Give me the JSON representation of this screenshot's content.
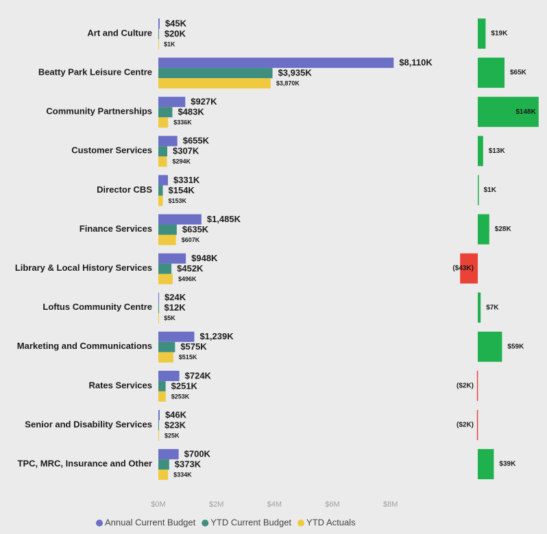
{
  "chart_data": [
    {
      "type": "hbar",
      "categories": [
        "Art and Culture",
        "Beatty Park Leisure Centre",
        "Community Partnerships",
        "Customer Services",
        "Director CBS",
        "Finance Services",
        "Library & Local History Services",
        "Loftus Community Centre",
        "Marketing and Communications",
        "Rates Services",
        "Senior and Disability Services",
        "TPC, MRC, Insurance and Other"
      ],
      "series": [
        {
          "name": "Annual Current Budget",
          "color": "#6b6fc6",
          "values": [
            0.045,
            8.11,
            0.927,
            0.655,
            0.331,
            1.485,
            0.948,
            0.024,
            1.239,
            0.724,
            0.046,
            0.7
          ],
          "value_labels": [
            "$45K",
            "$8,110K",
            "$927K",
            "$655K",
            "$331K",
            "$1,485K",
            "$948K",
            "$24K",
            "$1,239K",
            "$724K",
            "$46K",
            "$700K"
          ]
        },
        {
          "name": "YTD Current Budget",
          "color": "#3f8f80",
          "values": [
            0.02,
            3.935,
            0.483,
            0.307,
            0.154,
            0.635,
            0.452,
            0.012,
            0.575,
            0.251,
            0.023,
            0.373
          ],
          "value_labels": [
            "$20K",
            "$3,935K",
            "$483K",
            "$307K",
            "$154K",
            "$635K",
            "$452K",
            "$12K",
            "$575K",
            "$251K",
            "$23K",
            "$373K"
          ]
        },
        {
          "name": "YTD Actuals",
          "color": "#efc940",
          "values": [
            0.001,
            3.87,
            0.336,
            0.294,
            0.153,
            0.607,
            0.496,
            0.005,
            0.515,
            0.253,
            0.025,
            0.334
          ],
          "value_labels": [
            "$1K",
            "$3,870K",
            "$336K",
            "$294K",
            "$153K",
            "$607K",
            "$496K",
            "$5K",
            "$515K",
            "$253K",
            "$25K",
            "$334K"
          ]
        }
      ],
      "xlim": [
        0,
        9
      ],
      "xticks": [
        {
          "value": 0,
          "label": "$0M"
        },
        {
          "value": 2,
          "label": "$2M"
        },
        {
          "value": 4,
          "label": "$4M"
        },
        {
          "value": 6,
          "label": "$6M"
        },
        {
          "value": 8,
          "label": "$8M"
        }
      ],
      "legend": "bottom"
    },
    {
      "type": "hbar",
      "values": [
        19,
        65,
        148,
        13,
        1,
        28,
        -43,
        7,
        59,
        -2,
        -2,
        39
      ],
      "value_labels": [
        "$19K",
        "$65K",
        "$148K",
        "$13K",
        "$1K",
        "$28K",
        "($43K)",
        "$7K",
        "$59K",
        "($2K)",
        "($2K)",
        "$39K"
      ],
      "color": "#1fb14d",
      "negative_color": "#ea4237"
    }
  ]
}
